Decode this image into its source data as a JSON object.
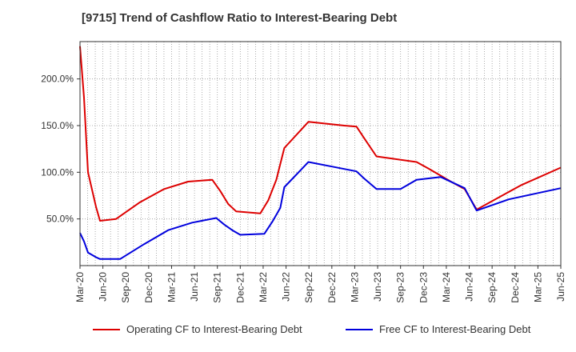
{
  "title": "[9715]  Trend of Cashflow Ratio to Interest-Bearing Debt",
  "legend": {
    "series1": "Operating CF to Interest-Bearing Debt",
    "series2": "Free CF to Interest-Bearing Debt"
  },
  "colors": {
    "series1": "#dd0000",
    "series2": "#0000dd",
    "grid": "#999999",
    "axis": "#333333"
  },
  "chart_data": {
    "type": "line",
    "x_tick_labels": [
      "Mar-20",
      "Jun-20",
      "Sep-20",
      "Dec-20",
      "Mar-21",
      "Jun-21",
      "Sep-21",
      "Dec-21",
      "Mar-22",
      "Jun-22",
      "Sep-22",
      "Dec-22",
      "Mar-23",
      "Jun-23",
      "Sep-23",
      "Dec-23",
      "Mar-24",
      "Jun-24",
      "Sep-24",
      "Dec-24",
      "Mar-25",
      "Jun-25"
    ],
    "y_tick_labels": [
      "50.0%",
      "100.0%",
      "150.0%",
      "200.0%"
    ],
    "y_ticks": [
      50,
      100,
      150,
      200
    ],
    "ylim": [
      0,
      240
    ],
    "x_unit": "months since Mar-20",
    "grid": true,
    "legend_position": "bottom",
    "series": [
      {
        "name": "Operating CF to Interest-Bearing Debt",
        "points": [
          [
            0,
            235
          ],
          [
            1,
            180
          ],
          [
            2,
            100
          ],
          [
            4,
            63
          ],
          [
            5,
            48
          ],
          [
            9,
            50
          ],
          [
            15,
            68
          ],
          [
            21,
            82
          ],
          [
            27,
            90
          ],
          [
            33,
            92
          ],
          [
            35,
            80
          ],
          [
            37,
            66
          ],
          [
            39,
            58
          ],
          [
            45,
            56
          ],
          [
            47,
            70
          ],
          [
            49,
            92
          ],
          [
            51,
            126
          ],
          [
            57,
            154
          ],
          [
            66,
            150
          ],
          [
            69,
            149
          ],
          [
            71,
            136
          ],
          [
            74,
            117
          ],
          [
            84,
            111
          ],
          [
            87,
            104
          ],
          [
            93,
            89
          ],
          [
            96,
            82
          ],
          [
            99,
            60
          ],
          [
            110,
            86
          ],
          [
            120,
            105
          ]
        ]
      },
      {
        "name": "Free CF to Interest-Bearing Debt",
        "points": [
          [
            0,
            35
          ],
          [
            1,
            26
          ],
          [
            2,
            14
          ],
          [
            4,
            9
          ],
          [
            5,
            7
          ],
          [
            10,
            7
          ],
          [
            16,
            23
          ],
          [
            22,
            38
          ],
          [
            28,
            46
          ],
          [
            34,
            51
          ],
          [
            36,
            44
          ],
          [
            38,
            38
          ],
          [
            40,
            33
          ],
          [
            46,
            34
          ],
          [
            48,
            47
          ],
          [
            50,
            62
          ],
          [
            51,
            84
          ],
          [
            57,
            111
          ],
          [
            63,
            106
          ],
          [
            69,
            101
          ],
          [
            71,
            93
          ],
          [
            74,
            82
          ],
          [
            80,
            82
          ],
          [
            84,
            92
          ],
          [
            90,
            95
          ],
          [
            96,
            83
          ],
          [
            99,
            59
          ],
          [
            107,
            71
          ],
          [
            120,
            83
          ]
        ]
      }
    ]
  }
}
